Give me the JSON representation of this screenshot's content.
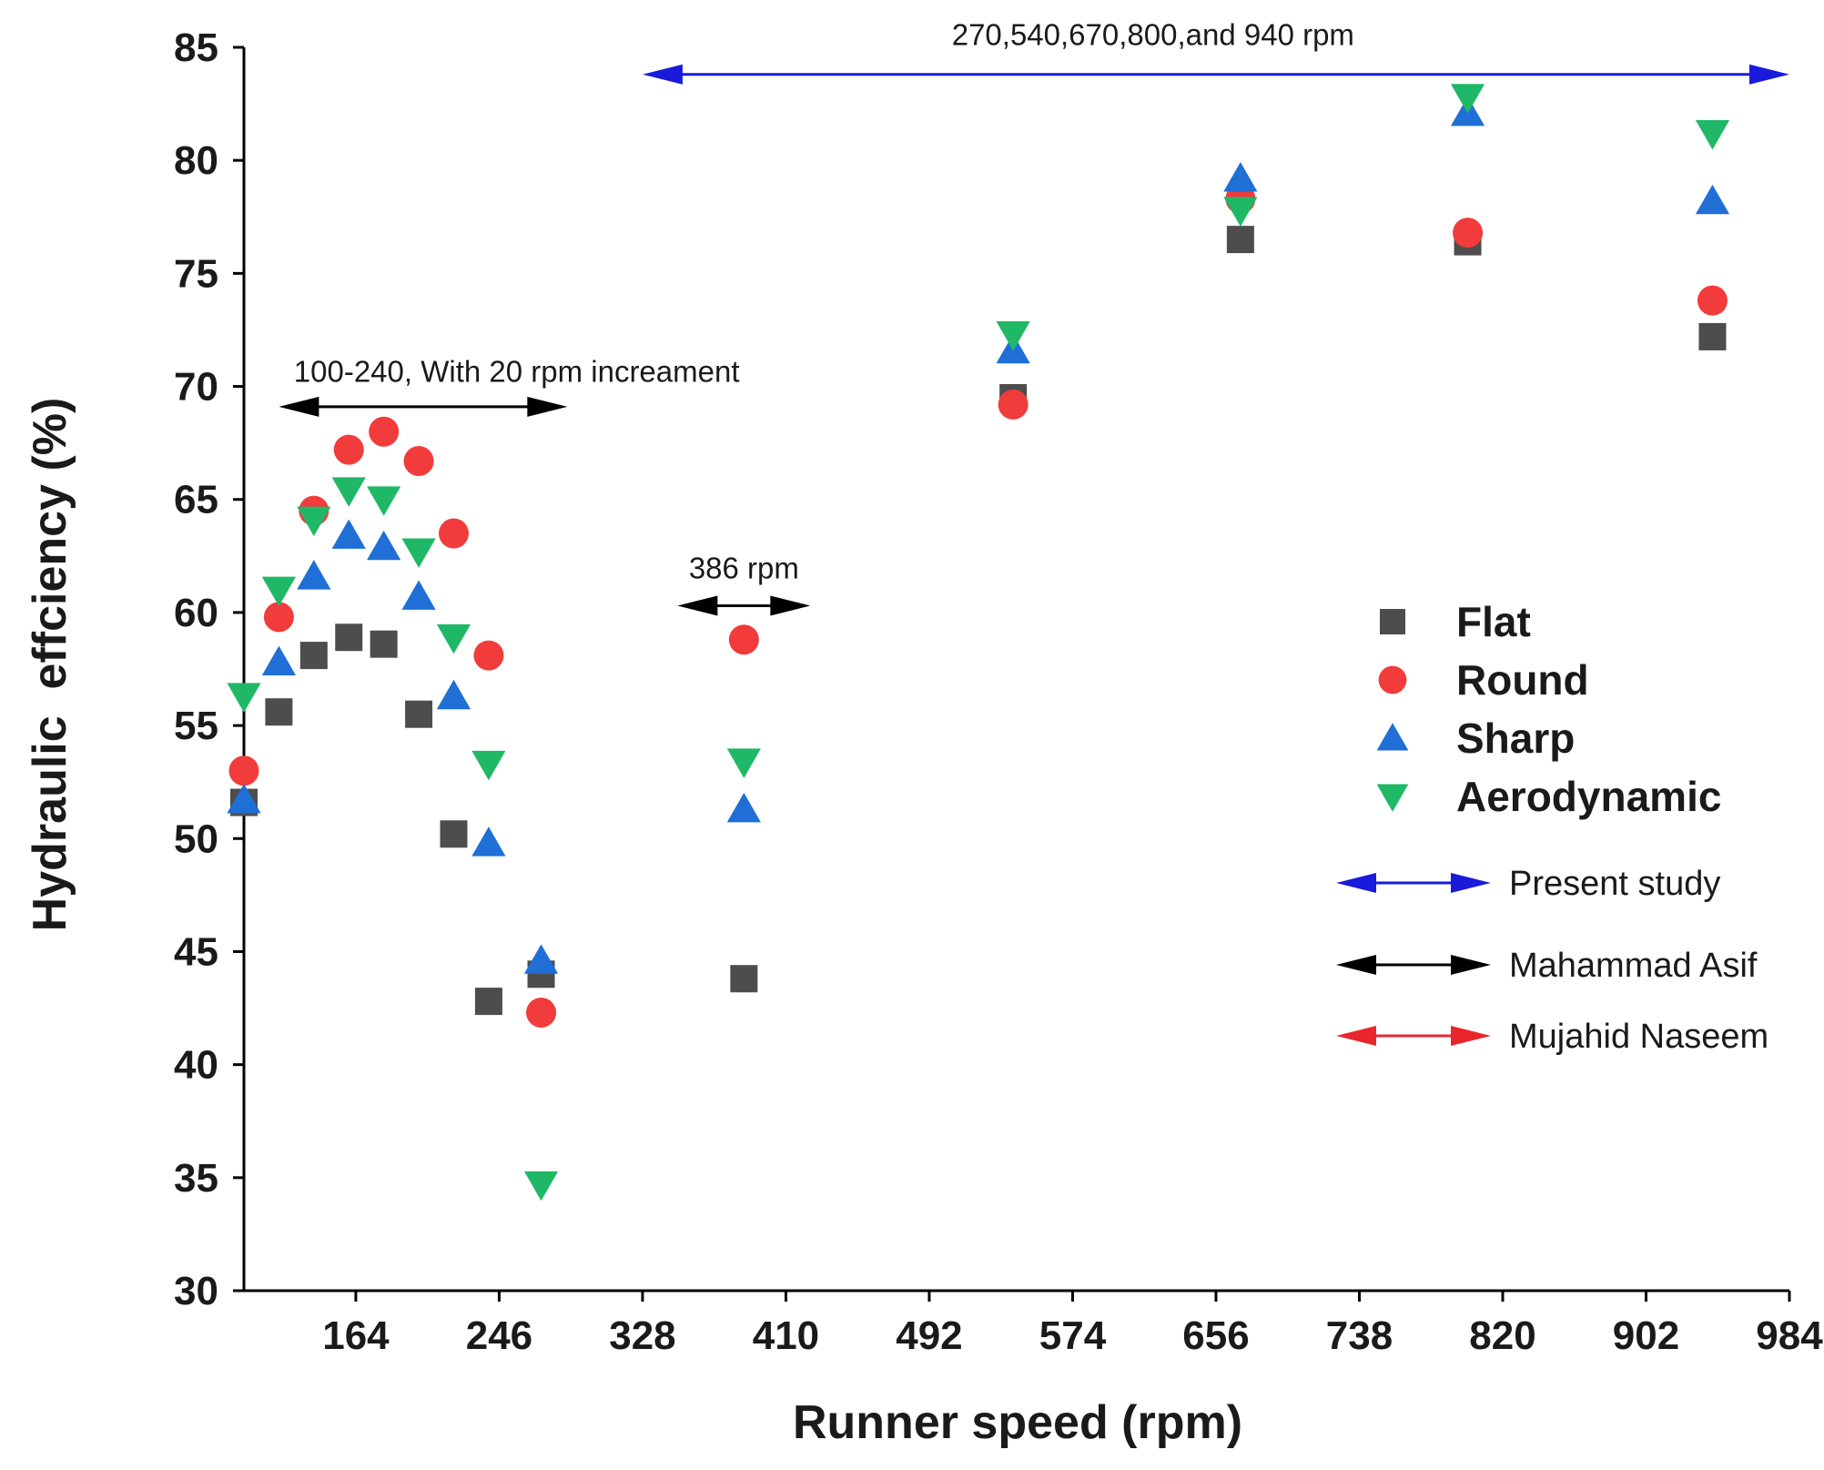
{
  "chart_data": {
    "type": "scatter",
    "title": "",
    "xlabel": "Runner speed (rpm)",
    "ylabel": "Hydraulic  effciency (%)",
    "xlim": [
      100,
      984
    ],
    "ylim": [
      30,
      85
    ],
    "xticks": [
      164,
      246,
      328,
      410,
      492,
      574,
      656,
      738,
      820,
      902,
      984
    ],
    "yticks": [
      30,
      35,
      40,
      45,
      50,
      55,
      60,
      65,
      70,
      75,
      80,
      85
    ],
    "grid": false,
    "series": [
      {
        "name": "Flat",
        "marker": "square",
        "color": "#4d4d4d",
        "points": [
          [
            100,
            51.6
          ],
          [
            120,
            55.6
          ],
          [
            140,
            58.1
          ],
          [
            160,
            58.9
          ],
          [
            180,
            58.6
          ],
          [
            200,
            55.5
          ],
          [
            220,
            50.2
          ],
          [
            240,
            42.8
          ],
          [
            270,
            44.0
          ],
          [
            386,
            43.8
          ],
          [
            540,
            69.5
          ],
          [
            670,
            76.5
          ],
          [
            800,
            76.4
          ],
          [
            940,
            72.2
          ]
        ]
      },
      {
        "name": "Round",
        "marker": "circle",
        "color": "#f23b3b",
        "points": [
          [
            100,
            53.0
          ],
          [
            120,
            59.8
          ],
          [
            140,
            64.5
          ],
          [
            160,
            67.2
          ],
          [
            180,
            68.0
          ],
          [
            200,
            66.7
          ],
          [
            220,
            63.5
          ],
          [
            240,
            58.1
          ],
          [
            270,
            42.3
          ],
          [
            386,
            58.8
          ],
          [
            540,
            69.2
          ],
          [
            670,
            78.3
          ],
          [
            800,
            76.8
          ],
          [
            940,
            73.8
          ]
        ]
      },
      {
        "name": "Sharp",
        "marker": "triangle-up",
        "color": "#1f6fd6",
        "points": [
          [
            100,
            51.7
          ],
          [
            120,
            57.8
          ],
          [
            140,
            61.6
          ],
          [
            160,
            63.4
          ],
          [
            180,
            62.9
          ],
          [
            200,
            60.7
          ],
          [
            220,
            56.3
          ],
          [
            240,
            49.8
          ],
          [
            270,
            44.6
          ],
          [
            386,
            51.3
          ],
          [
            540,
            71.6
          ],
          [
            670,
            79.2
          ],
          [
            800,
            82.1
          ],
          [
            940,
            78.2
          ]
        ]
      },
      {
        "name": "Aerodynamic",
        "marker": "triangle-down",
        "color": "#1fb866",
        "points": [
          [
            100,
            56.3
          ],
          [
            120,
            61.0
          ],
          [
            140,
            64.1
          ],
          [
            160,
            65.4
          ],
          [
            180,
            65.0
          ],
          [
            200,
            62.7
          ],
          [
            220,
            58.9
          ],
          [
            240,
            53.3
          ],
          [
            270,
            34.7
          ],
          [
            386,
            53.4
          ],
          [
            540,
            72.3
          ],
          [
            670,
            77.8
          ],
          [
            800,
            82.8
          ],
          [
            940,
            81.2
          ]
        ]
      }
    ],
    "annotations": [
      {
        "text": "270,540,670,800,and 940 rpm",
        "color": "#1a1adb",
        "x_from": 328,
        "x_to": 984,
        "y": 83.8,
        "label_x": 620,
        "label_y": 85.1
      },
      {
        "text": "100-240, With 20 rpm increament",
        "color": "#000000",
        "x_from": 120,
        "x_to": 285,
        "y": 69.1,
        "label_x": 256,
        "label_y": 70.2
      },
      {
        "text": "386 rpm",
        "color": "#000000",
        "x_from": 348,
        "x_to": 424,
        "y": 60.3,
        "label_x": 386,
        "label_y": 61.5
      }
    ],
    "legend": {
      "position": "right-middle",
      "marker_entries": [
        "Flat",
        "Round",
        "Sharp",
        "Aerodynamic"
      ],
      "arrow_entries": [
        {
          "label": "Present study",
          "color": "#1a1adb"
        },
        {
          "label": "Mahammad Asif",
          "color": "#000000"
        },
        {
          "label": "Mujahid Naseem",
          "color": "#e8262b"
        }
      ]
    }
  }
}
